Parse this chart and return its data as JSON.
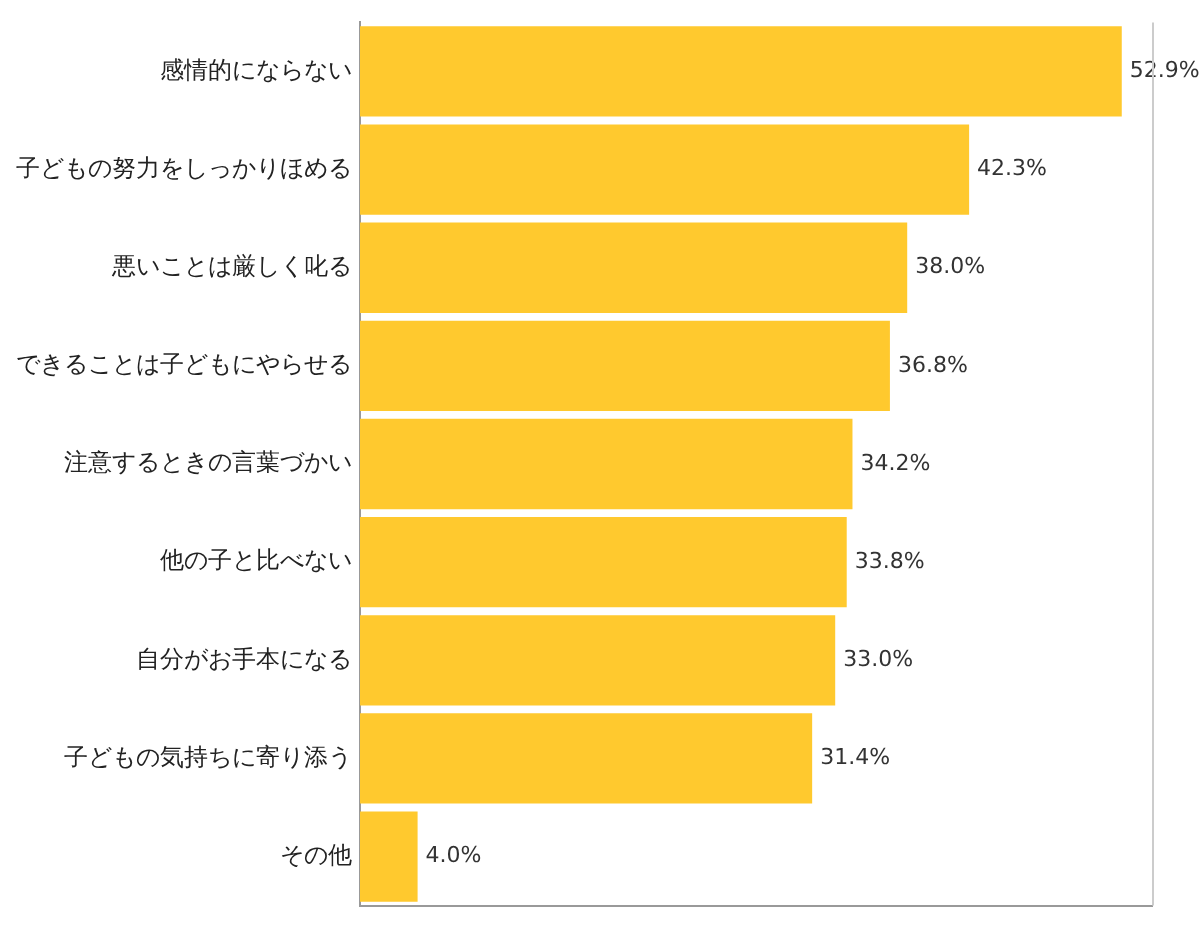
{
  "chart_data": {
    "type": "bar",
    "orientation": "horizontal",
    "categories": [
      "感情的にならない",
      "子どもの努力をしっかりほめる",
      "悪いことは厳しく叱る",
      "できることは子どもにやらせる",
      "注意するときの言葉づかい",
      "他の子と比べない",
      "自分がお手本になる",
      "子どもの気持ちに寄り添う",
      "その他"
    ],
    "values": [
      52.9,
      42.3,
      38.0,
      36.8,
      34.2,
      33.8,
      33.0,
      31.4,
      4.0
    ],
    "value_labels": [
      "52.9%",
      "42.3%",
      "38.0%",
      "36.8%",
      "34.2%",
      "33.8%",
      "33.0%",
      "31.4%",
      "4.0%"
    ],
    "color": "#ffc92e",
    "xlim": [
      0,
      55
    ],
    "grid": false,
    "legend": false,
    "tick_labels": "y"
  }
}
